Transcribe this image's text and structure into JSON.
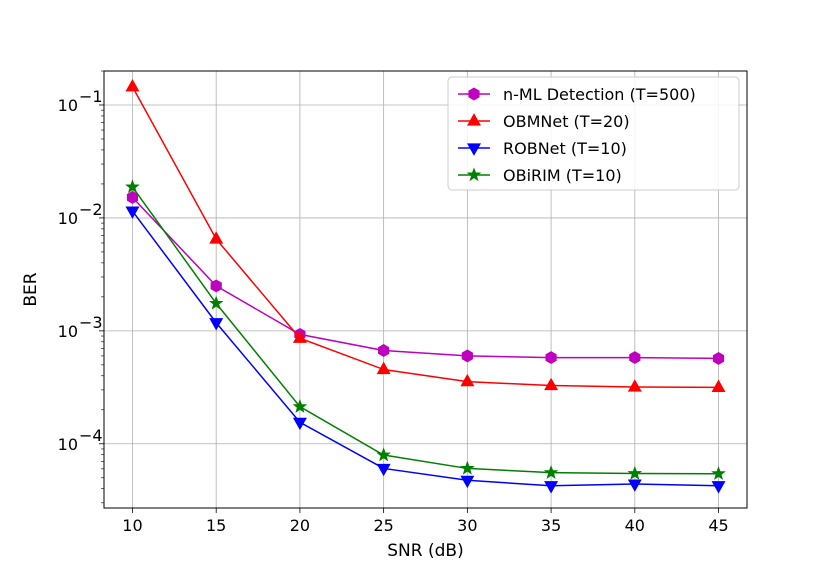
{
  "chart_data": {
    "type": "line",
    "xlabel": "SNR (dB)",
    "ylabel": "BER",
    "yscale": "log",
    "xlim": [
      8.3,
      46.7
    ],
    "ylim": [
      2.7e-05,
      0.2
    ],
    "grid": true,
    "legend_position": "top-right",
    "x": [
      10,
      15,
      20,
      25,
      30,
      35,
      40,
      45
    ],
    "x_tick_labels": [
      "10",
      "15",
      "20",
      "25",
      "30",
      "35",
      "40",
      "45"
    ],
    "y_ticks": [
      {
        "value": 0.1,
        "base": "10",
        "exp": "−1"
      },
      {
        "value": 0.01,
        "base": "10",
        "exp": "−2"
      },
      {
        "value": 0.001,
        "base": "10",
        "exp": "−3"
      },
      {
        "value": 0.0001,
        "base": "10",
        "exp": "−4"
      }
    ],
    "series": [
      {
        "name": "n-ML Detection (T=500)",
        "color": "#bf00bf",
        "marker": "hexagon",
        "values": [
          0.0152,
          0.0025,
          0.00093,
          0.00067,
          0.0006,
          0.00058,
          0.00058,
          0.00057
        ]
      },
      {
        "name": "OBMNet (T=20)",
        "color": "#ff0000",
        "marker": "triangle-up",
        "values": [
          0.145,
          0.0065,
          0.00086,
          0.000455,
          0.000355,
          0.000328,
          0.000318,
          0.000316
        ]
      },
      {
        "name": "ROBNet (T=10)",
        "color": "#0000ff",
        "marker": "triangle-down",
        "values": [
          0.0115,
          0.00118,
          0.000155,
          6.05e-05,
          4.75e-05,
          4.25e-05,
          4.4e-05,
          4.25e-05
        ]
      },
      {
        "name": "OBiRIM (T=10)",
        "color": "#008000",
        "marker": "star",
        "values": [
          0.0188,
          0.00175,
          0.000213,
          7.95e-05,
          6.05e-05,
          5.55e-05,
          5.45e-05,
          5.43e-05
        ]
      }
    ]
  }
}
